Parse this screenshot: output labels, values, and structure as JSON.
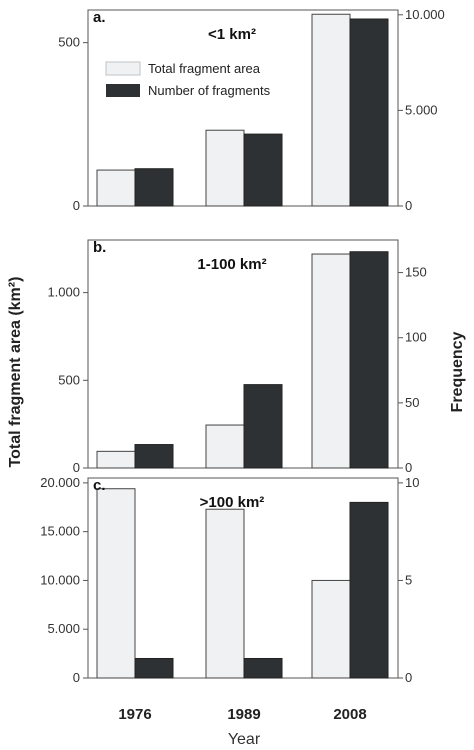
{
  "axes": {
    "ylabel_left": "Total fragment area (km²)",
    "ylabel_right": "Frequency",
    "xlabel": "Year"
  },
  "legend": {
    "placement": "top-left inside panel a",
    "items": [
      {
        "label": "Total fragment area",
        "color": "#f0f1f2"
      },
      {
        "label": "Number of fragments",
        "color": "#2e3133"
      }
    ]
  },
  "chart_data": [
    {
      "type": "bar",
      "panel": "a.",
      "title": "<1 km²",
      "categories": [
        "1976",
        "1989",
        "2008"
      ],
      "series": [
        {
          "name": "Total fragment area",
          "axis": "left",
          "values": [
            110,
            232,
            587
          ],
          "color": "#f0f1f2"
        },
        {
          "name": "Number of fragments",
          "axis": "right",
          "values": [
            1950,
            3760,
            9780
          ],
          "color": "#2e3133"
        }
      ],
      "ylim_left": [
        0,
        600
      ],
      "ylim_right": [
        0,
        10250
      ],
      "yticks_left": [
        {
          "v": 0,
          "label": "0"
        },
        {
          "v": 500,
          "label": "500"
        }
      ],
      "yticks_right": [
        {
          "v": 0,
          "label": "0"
        },
        {
          "v": 5000,
          "label": "5.000"
        },
        {
          "v": 10000,
          "label": "10.000"
        }
      ],
      "grid": false
    },
    {
      "type": "bar",
      "panel": "b.",
      "title": "1-100 km²",
      "categories": [
        "1976",
        "1989",
        "2008"
      ],
      "series": [
        {
          "name": "Total fragment area",
          "axis": "left",
          "values": [
            95,
            245,
            1220
          ],
          "color": "#f0f1f2"
        },
        {
          "name": "Number of fragments",
          "axis": "right",
          "values": [
            18,
            64,
            166
          ],
          "color": "#2e3133"
        }
      ],
      "ylim_left": [
        0,
        1300
      ],
      "ylim_right": [
        0,
        175
      ],
      "yticks_left": [
        {
          "v": 0,
          "label": "0"
        },
        {
          "v": 500,
          "label": "500"
        },
        {
          "v": 1000,
          "label": "1.000"
        }
      ],
      "yticks_right": [
        {
          "v": 0,
          "label": "0"
        },
        {
          "v": 50,
          "label": "50"
        },
        {
          "v": 100,
          "label": "100"
        },
        {
          "v": 150,
          "label": "150"
        }
      ],
      "grid": false
    },
    {
      "type": "bar",
      "panel": "c.",
      "title": ">100 km²",
      "categories": [
        "1976",
        "1989",
        "2008"
      ],
      "series": [
        {
          "name": "Total fragment area",
          "axis": "left",
          "values": [
            19400,
            17300,
            10000
          ],
          "color": "#f0f1f2"
        },
        {
          "name": "Number of fragments",
          "axis": "right",
          "values": [
            1,
            1,
            9
          ],
          "color": "#2e3133"
        }
      ],
      "ylim_left": [
        0,
        20500
      ],
      "ylim_right": [
        0,
        10.25
      ],
      "yticks_left": [
        {
          "v": 0,
          "label": "0"
        },
        {
          "v": 5000,
          "label": "5.000"
        },
        {
          "v": 10000,
          "label": "10.000"
        },
        {
          "v": 15000,
          "label": "15.000"
        },
        {
          "v": 20000,
          "label": "20.000"
        }
      ],
      "yticks_right": [
        {
          "v": 0,
          "label": "0"
        },
        {
          "v": 5,
          "label": "5"
        },
        {
          "v": 10,
          "label": "10"
        }
      ],
      "grid": false
    }
  ]
}
